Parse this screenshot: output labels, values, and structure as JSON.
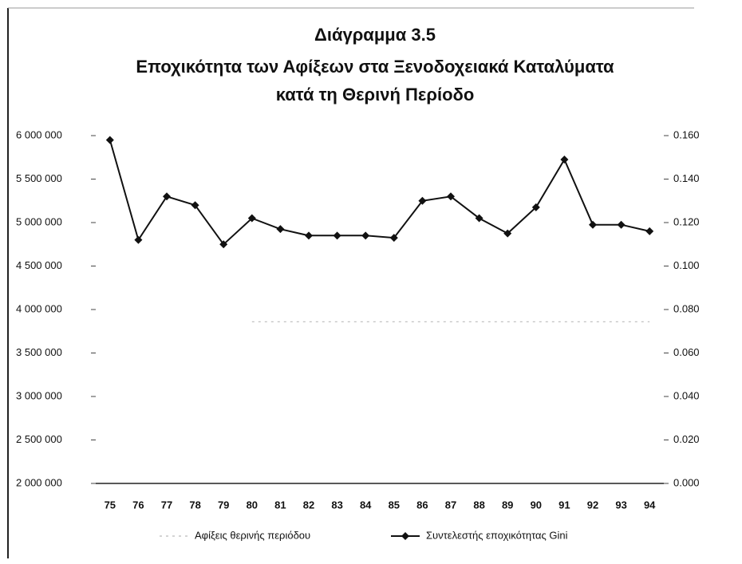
{
  "chart_data": {
    "type": "line",
    "title": "Διάγραμμα 3.5",
    "subtitle": [
      "Εποχικότητα των Αφίξεων στα Ξενοδοχειακά Καταλύματα",
      "κατά τη Θερινή Περίοδο"
    ],
    "categories": [
      "75",
      "76",
      "77",
      "78",
      "79",
      "80",
      "81",
      "82",
      "83",
      "84",
      "85",
      "86",
      "87",
      "88",
      "89",
      "90",
      "91",
      "92",
      "93",
      "94"
    ],
    "series": [
      {
        "name": "Αφίξεις θερινής περιόδου",
        "color": "#bbbbbb",
        "axis": "y",
        "values": [
          null,
          null,
          null,
          null,
          null,
          3860000,
          3860000,
          3860000,
          3860000,
          3860000,
          3860000,
          3860000,
          3860000,
          3860000,
          3860000,
          3860000,
          3860000,
          3860000,
          3860000,
          3860000
        ]
      },
      {
        "name": "Συντελεστής εποχικότητας Gini",
        "color": "#111111",
        "axis": "y2",
        "values": [
          0.158,
          0.112,
          0.132,
          0.128,
          0.11,
          0.122,
          0.117,
          0.114,
          0.114,
          0.114,
          0.113,
          0.13,
          0.132,
          0.122,
          0.115,
          0.127,
          0.149,
          0.119,
          0.119,
          0.116
        ]
      }
    ],
    "ylim": [
      2000000,
      6000000
    ],
    "yticks": [
      {
        "value": 2000000,
        "label": "2 000 000"
      },
      {
        "value": 2500000,
        "label": "2 500 000"
      },
      {
        "value": 3000000,
        "label": "3 000 000"
      },
      {
        "value": 3500000,
        "label": "3 500 000"
      },
      {
        "value": 4000000,
        "label": "4 000 000"
      },
      {
        "value": 4500000,
        "label": "4 500 000"
      },
      {
        "value": 5000000,
        "label": "5 000 000"
      },
      {
        "value": 5500000,
        "label": "5 500 000"
      },
      {
        "value": 6000000,
        "label": "6 000 000"
      }
    ],
    "y2lim": [
      0,
      0.16
    ],
    "y2ticks": [
      {
        "value": 0,
        "label": "0.000"
      },
      {
        "value": 0.02,
        "label": "0.020"
      },
      {
        "value": 0.04,
        "label": "0.040"
      },
      {
        "value": 0.06,
        "label": "0.060"
      },
      {
        "value": 0.08,
        "label": "0.080"
      },
      {
        "value": 0.1,
        "label": "0.100"
      },
      {
        "value": 0.12,
        "label": "0.120"
      },
      {
        "value": 0.14,
        "label": "0.140"
      },
      {
        "value": 0.16,
        "label": "0.160"
      }
    ],
    "grid": false,
    "legend": "bottom"
  }
}
